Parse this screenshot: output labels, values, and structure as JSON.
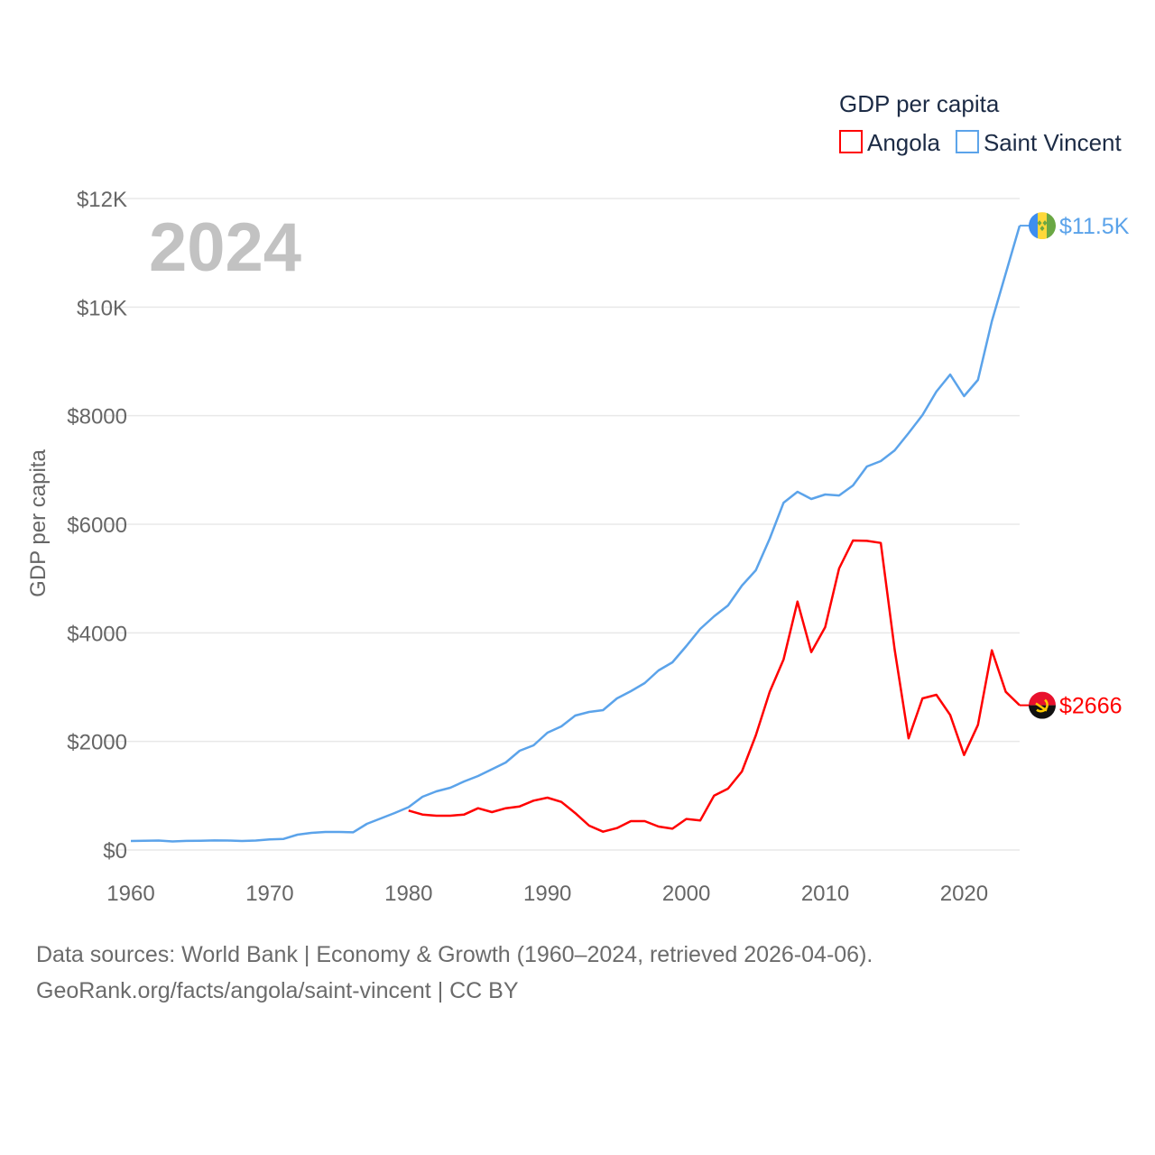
{
  "chart_data": {
    "type": "line",
    "title": "GDP per capita",
    "year_label": "2024",
    "xlabel": "",
    "ylabel": "GDP per capita",
    "xlim": [
      1960,
      2024
    ],
    "ylim": [
      0,
      12000
    ],
    "x_ticks": [
      1960,
      1970,
      1980,
      1990,
      2000,
      2010,
      2020
    ],
    "x_tick_labels": [
      "1960",
      "1970",
      "1980",
      "1990",
      "2000",
      "2010",
      "2020"
    ],
    "y_ticks": [
      0,
      2000,
      4000,
      6000,
      8000,
      10000,
      12000
    ],
    "y_tick_labels": [
      "$0",
      "$2000",
      "$4000",
      "$6000",
      "$8000",
      "$10K",
      "$12K"
    ],
    "grid": true,
    "legend_position": "top-right",
    "series": [
      {
        "name": "Angola",
        "color": "#ff0000",
        "end_label": "$2666",
        "flag": "angola-flag",
        "start_year": 1980,
        "values": [
          726,
          654,
          632,
          632,
          654,
          770,
          698,
          770,
          803,
          909,
          964,
          886,
          680,
          449,
          337,
          404,
          532,
          532,
          432,
          393,
          571,
          543,
          1002,
          1130,
          1446,
          2111,
          2913,
          3512,
          4576,
          3645,
          4105,
          5185,
          5700,
          5695,
          5656,
          3690,
          2056,
          2792,
          2859,
          2488,
          1750,
          2305,
          3678,
          2913,
          2666
        ]
      },
      {
        "name": "Saint Vincent",
        "color": "#5ba3ea",
        "end_label": "$11.5K",
        "flag": "saint-vincent-flag",
        "start_year": 1960,
        "values": [
          166,
          170,
          175,
          158,
          168,
          170,
          177,
          175,
          166,
          175,
          195,
          205,
          283,
          316,
          333,
          333,
          325,
          482,
          582,
          682,
          790,
          980,
          1080,
          1147,
          1263,
          1363,
          1487,
          1612,
          1828,
          1928,
          2160,
          2277,
          2476,
          2543,
          2576,
          2792,
          2925,
          3075,
          3307,
          3457,
          3756,
          4072,
          4305,
          4504,
          4870,
          5152,
          5734,
          6398,
          6598,
          6465,
          6548,
          6531,
          6714,
          7063,
          7163,
          7362,
          7678,
          8011,
          8443,
          8758,
          8360,
          8659,
          9739,
          10620,
          11500
        ]
      }
    ]
  },
  "footer": {
    "line1": "Data sources: World Bank | Economy & Growth (1960–2024, retrieved 2026-04-06).",
    "line2": "GeoRank.org/facts/angola/saint-vincent | CC BY"
  }
}
